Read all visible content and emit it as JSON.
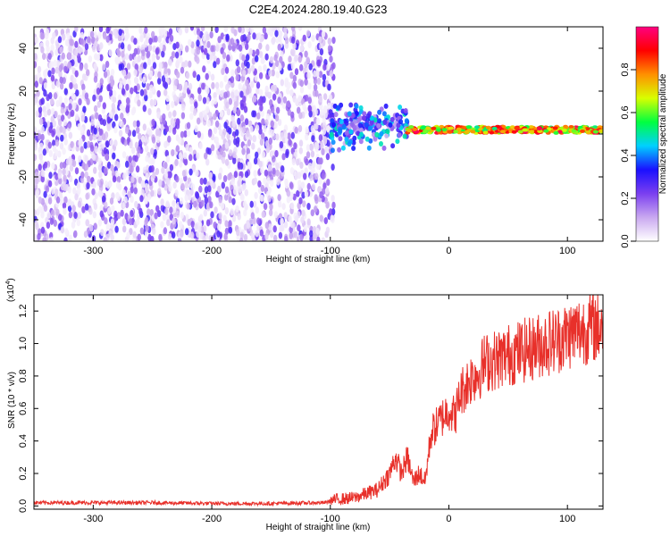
{
  "title": "C2E4.2024.280.19.40.G23",
  "chart_data": [
    {
      "type": "heatmap",
      "panel": "spectrogram",
      "xlabel": "Height of straight line (km)",
      "ylabel": "Frequency (Hz)",
      "xlim": [
        -350,
        130
      ],
      "ylim": [
        -50,
        50
      ],
      "xticks": [
        -300,
        -200,
        -100,
        0,
        100
      ],
      "yticks": [
        -40,
        -20,
        0,
        20,
        40
      ],
      "colorbar": {
        "label": "Normalized spectral amplitude",
        "range": [
          0,
          1
        ],
        "ticks": [
          "0.0",
          "0.2",
          "0.4",
          "0.6",
          "0.8"
        ],
        "colors": [
          "#ffffff",
          "#c9a8f0",
          "#7b3ff0",
          "#1a10ff",
          "#00d0ff",
          "#00ff40",
          "#d8ff00",
          "#ff9000",
          "#ff0000",
          "#ff0080"
        ]
      },
      "regions": [
        {
          "x_range": [
            -350,
            -97
          ],
          "description": "broadband noise",
          "amplitude_range": [
            0.02,
            0.3
          ]
        },
        {
          "x_range": [
            -100,
            -35
          ],
          "center_freq_hz": 4,
          "spread_hz": 12,
          "amplitude_range": [
            0.1,
            0.5
          ]
        },
        {
          "x_range": [
            -35,
            130
          ],
          "center_freq_hz": 2,
          "spread_hz": 3,
          "amplitude_range": [
            0.5,
            0.98
          ]
        }
      ]
    },
    {
      "type": "line",
      "panel": "snr",
      "xlabel": "Height of straight line (km)",
      "ylabel": "SNR (10 * v/v)",
      "yunit_label": "(x10",
      "yunit_exp": "4",
      "xlim": [
        -350,
        130
      ],
      "ylim": [
        -0.02,
        1.3
      ],
      "xticks": [
        -300,
        -200,
        -100,
        0,
        100
      ],
      "yticks": [
        "0.0",
        "0.2",
        "0.4",
        "0.6",
        "0.8",
        "1.0",
        "1.2"
      ],
      "color": "#e8302a",
      "series": [
        {
          "x": [
            -350,
            -300,
            -250,
            -200,
            -150,
            -105,
            -95,
            -80,
            -60,
            -50,
            -45,
            -40,
            -35,
            -30,
            -25,
            -20,
            -15,
            -10,
            -5,
            0,
            5,
            10,
            15,
            20,
            25,
            30,
            40,
            50,
            60,
            70,
            80,
            90,
            100,
            110,
            120,
            130
          ],
          "y": [
            0.02,
            0.02,
            0.02,
            0.015,
            0.015,
            0.02,
            0.04,
            0.05,
            0.1,
            0.2,
            0.3,
            0.2,
            0.3,
            0.15,
            0.2,
            0.15,
            0.45,
            0.5,
            0.55,
            0.6,
            0.55,
            0.7,
            0.75,
            0.8,
            0.82,
            0.88,
            0.9,
            0.93,
            0.95,
            0.97,
            1.0,
            1.02,
            1.05,
            1.08,
            1.1,
            1.12
          ]
        }
      ]
    }
  ]
}
